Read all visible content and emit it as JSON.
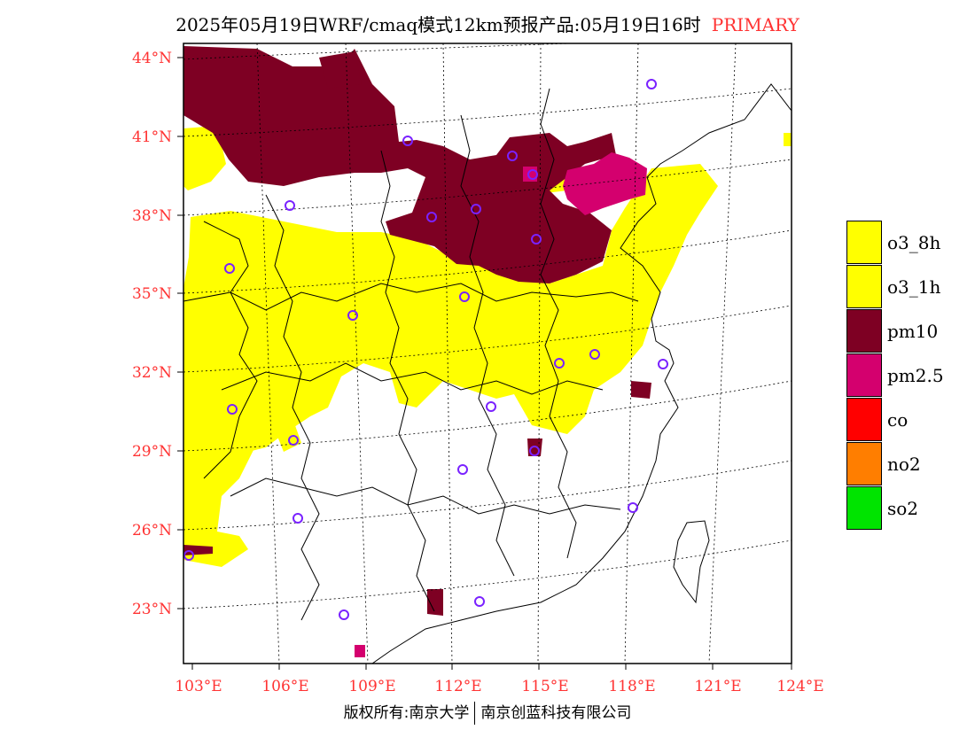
{
  "title": {
    "main": "2025年05月19日WRF/cmaq模式12km预报产品:05月19日16时",
    "tag": "PRIMARY"
  },
  "map": {
    "lat_labels": [
      "44°N",
      "41°N",
      "38°N",
      "35°N",
      "32°N",
      "29°N",
      "26°N",
      "23°N"
    ],
    "lon_labels": [
      "103°E",
      "106°E",
      "109°E",
      "112°E",
      "115°E",
      "118°E",
      "121°E",
      "124°E"
    ],
    "label_color": "#ff3333",
    "station_marker": "circle",
    "station_color": "#7a22ff"
  },
  "legend": [
    {
      "label": "o3_8h",
      "color": "#ffff00"
    },
    {
      "label": "o3_1h",
      "color": "#ffff00"
    },
    {
      "label": "pm10",
      "color": "#7e0023"
    },
    {
      "label": "pm2.5",
      "color": "#d4006e"
    },
    {
      "label": "co",
      "color": "#ff0000"
    },
    {
      "label": "no2",
      "color": "#ff7e00"
    },
    {
      "label": "so2",
      "color": "#00e400"
    }
  ],
  "footer": {
    "left": "版权所有:南京大学",
    "right": "南京创蓝科技有限公司"
  }
}
